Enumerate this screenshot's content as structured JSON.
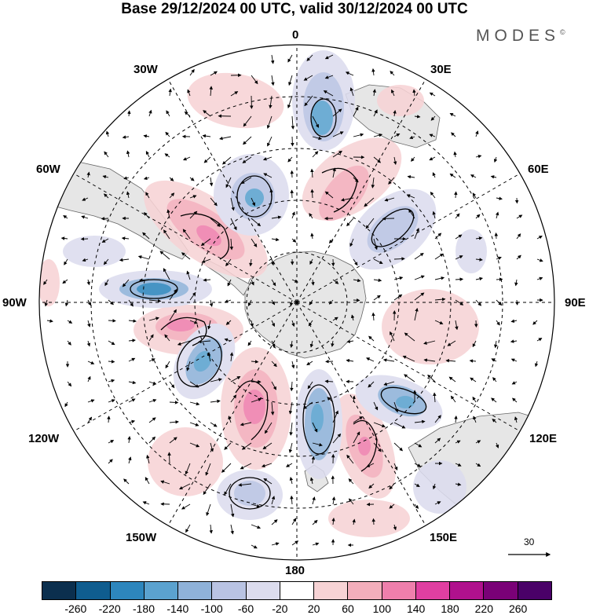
{
  "title": "Base 29/12/2024 00 UTC, valid 30/12/2024 00 UTC",
  "brand": "MODES",
  "brand_mark": "©",
  "projection": "south-polar-stereographic",
  "longitude_labels": {
    "top": "0",
    "bottom": "180",
    "left": "90W",
    "right": "90E",
    "l30": "30W",
    "l60": "60W",
    "l120": "120W",
    "l150": "150W",
    "r30": "30E",
    "r60": "60E",
    "r120": "120E",
    "r150": "150E"
  },
  "vector_scale": {
    "label": "30"
  },
  "colorbar": {
    "tick_labels": [
      "-260",
      "-220",
      "-180",
      "-140",
      "-100",
      "-60",
      "-20",
      "20",
      "60",
      "100",
      "140",
      "180",
      "220",
      "260"
    ],
    "colors": [
      "#0b2f4e",
      "#0f5d8f",
      "#2d86bd",
      "#5ba2cf",
      "#8fb2d9",
      "#b9c3e3",
      "#dcdcee",
      "#ffffff",
      "#f7d3d5",
      "#f3aebb",
      "#ef7fac",
      "#e03fa1",
      "#b0118d",
      "#7a0177",
      "#4a0168"
    ]
  },
  "field": {
    "name": "",
    "positive_color": "#ef7fac",
    "negative_color": "#2d86bd",
    "land_color": "#e6e6e6"
  }
}
